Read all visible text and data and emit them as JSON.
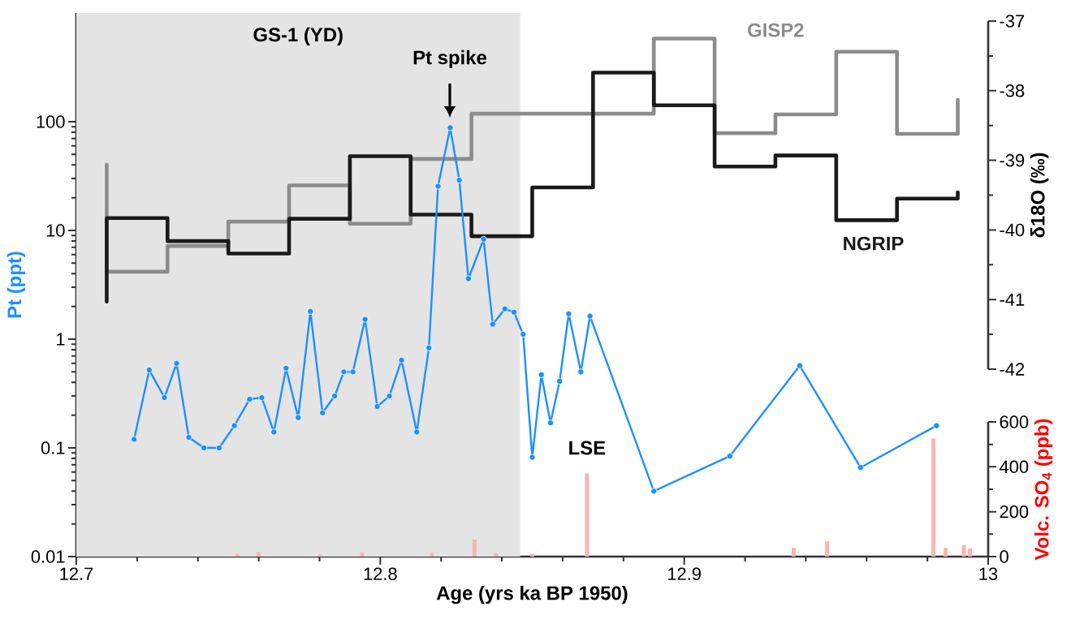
{
  "chart_data": [
    {
      "type": "line",
      "xlabel": "Age (yrs ka BP 1950)",
      "ylabel": "Pt (ppt)",
      "y2label": "δ18O (‰)",
      "log": "y",
      "xlim": [
        12.7,
        13
      ],
      "xticks": [
        12.7,
        12.8,
        12.9,
        13,
        {
          "value": 12.72,
          "label": null
        },
        {
          "value": 12.74,
          "label": null
        },
        {
          "value": 12.76,
          "label": null
        },
        {
          "value": 12.78,
          "label": null
        },
        {
          "value": 12.82,
          "label": null
        },
        {
          "value": 12.84,
          "label": null
        },
        {
          "value": 12.86,
          "label": null
        },
        {
          "value": 12.88,
          "label": null
        },
        {
          "value": 12.92,
          "label": null
        },
        {
          "value": 12.94,
          "label": null
        },
        {
          "value": 12.96,
          "label": null
        },
        {
          "value": 12.98,
          "label": null
        }
      ],
      "ylim": [
        0.01,
        1000
      ],
      "yticks": [
        0.01,
        0.1,
        1,
        10,
        100
      ],
      "y2lim": [
        -42,
        -37
      ],
      "y2ticks": [
        -42,
        -41,
        -40,
        -39,
        -38,
        -37,
        {
          "value": -41.5,
          "label": null
        },
        {
          "value": -40.5,
          "label": null
        },
        {
          "value": -39.5,
          "label": null
        },
        {
          "value": -38.5,
          "label": null
        },
        {
          "value": -37.5,
          "label": null
        }
      ],
      "bands": [
        {
          "axis": "x",
          "from": 12.7,
          "to": 12.846,
          "label": "GS-1 (YD)",
          "color": "#e4e4e4"
        }
      ],
      "annotations": [
        "Pt spike",
        "LSE"
      ],
      "series": [
        {
          "type": "line",
          "color": "#1e90ff",
          "marker": "circle",
          "x": [
            12.719,
            12.724,
            12.729,
            12.733,
            12.737,
            12.742,
            12.747,
            12.752,
            12.757,
            12.761,
            12.765,
            12.769,
            12.773,
            12.777,
            12.781,
            12.785,
            12.788,
            12.791,
            12.795,
            12.799,
            12.803,
            12.807,
            12.812,
            12.816,
            12.819,
            12.823,
            12.826,
            12.829,
            12.834,
            12.837,
            12.841,
            12.844,
            12.847,
            12.85,
            12.853,
            12.856,
            12.859,
            12.862,
            12.866,
            12.869,
            12.89,
            12.915,
            12.938,
            12.958,
            12.983
          ],
          "values": [
            0.12,
            0.52,
            0.29,
            0.6,
            0.125,
            0.1,
            0.1,
            0.16,
            0.28,
            0.29,
            0.14,
            0.54,
            0.19,
            1.8,
            0.21,
            0.3,
            0.5,
            0.5,
            1.52,
            0.24,
            0.3,
            0.64,
            0.14,
            0.83,
            25.5,
            88,
            29,
            3.6,
            8.3,
            1.37,
            1.9,
            1.77,
            1.11,
            0.082,
            0.47,
            0.17,
            0.41,
            1.71,
            0.5,
            1.63,
            0.04,
            0.084,
            0.57,
            0.066,
            0.16
          ]
        },
        {
          "name": "GISP2",
          "type": "step",
          "axis": "y2",
          "color": "#8c8c8c",
          "x": [
            12.71,
            12.71,
            12.73,
            12.75,
            12.77,
            12.79,
            12.81,
            12.83,
            12.89,
            12.91,
            12.93,
            12.95,
            12.97,
            12.99
          ],
          "values": [
            -39.06,
            -40.6,
            -40.23,
            -39.88,
            -39.36,
            -39.91,
            -38.98,
            -38.33,
            -37.25,
            -38.61,
            -38.34,
            -37.44,
            -38.62,
            -38.13
          ]
        },
        {
          "name": "NGRIP",
          "type": "step",
          "axis": "y2",
          "color": "#1a1a1a",
          "x": [
            12.71,
            12.71,
            12.73,
            12.75,
            12.77,
            12.79,
            12.81,
            12.83,
            12.85,
            12.87,
            12.89,
            12.91,
            12.93,
            12.95,
            12.97,
            12.99
          ],
          "values": [
            -41.03,
            -39.83,
            -40.16,
            -40.34,
            -39.84,
            -38.94,
            -39.78,
            -40.09,
            -39.39,
            -37.74,
            -38.21,
            -39.09,
            -38.93,
            -39.86,
            -39.55,
            -39.46
          ]
        }
      ]
    },
    {
      "type": "bar",
      "ylabel": "Volc. SO$_{4}$ (ppb)",
      "tick_labels": "y",
      "xlim": [
        12.7,
        13
      ],
      "ylim": [
        0,
        600
      ],
      "yticks": [
        0,
        200,
        400,
        600,
        {
          "value": 100,
          "label": null
        },
        {
          "value": 300,
          "label": null
        },
        {
          "value": 500,
          "label": null
        }
      ],
      "color": "#f8b4b4",
      "x": [
        12.753,
        12.76,
        12.78,
        12.786,
        12.794,
        12.797,
        12.817,
        12.826,
        12.831,
        12.838,
        12.85,
        12.868,
        12.936,
        12.947,
        12.962,
        12.982,
        12.986,
        12.992,
        12.994
      ],
      "values": [
        12,
        20,
        9,
        null,
        17,
        null,
        16,
        null,
        76,
        15,
        12,
        370,
        39,
        68,
        null,
        527,
        39,
        51,
        36
      ]
    }
  ]
}
